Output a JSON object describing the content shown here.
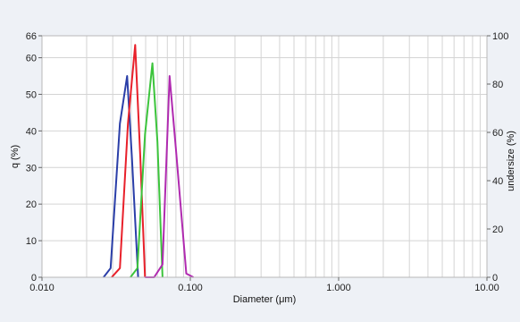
{
  "chart_data": {
    "type": "line",
    "xscale": "log",
    "xlim": [
      0.01,
      10
    ],
    "ylim": [
      0,
      66
    ],
    "y2lim": [
      0,
      100
    ],
    "xlabel": "Diameter (μm)",
    "ylabel": "q (%)",
    "y2label": "undersize (%)",
    "xticks": [
      "0.010",
      "0.100",
      "1.000",
      "10.00"
    ],
    "yticks": [
      "0",
      "10",
      "20",
      "30",
      "40",
      "50",
      "60",
      "66"
    ],
    "y2ticks": [
      "0",
      "20",
      "40",
      "60",
      "80",
      "100"
    ],
    "grid": true,
    "legend": "none",
    "series": [
      {
        "color": "#2a3ea8",
        "x": [
          0.026,
          0.029,
          0.0335,
          0.0375,
          0.0405,
          0.0445
        ],
        "y": [
          0,
          2.5,
          42,
          55,
          32,
          0
        ]
      },
      {
        "color": "#e8202a",
        "x": [
          0.0295,
          0.0335,
          0.038,
          0.0425,
          0.046,
          0.0495
        ],
        "y": [
          0,
          2.5,
          42,
          63.5,
          33,
          0
        ]
      },
      {
        "color": "#3cc43c",
        "x": [
          0.0395,
          0.044,
          0.0495,
          0.0555,
          0.06,
          0.065
        ],
        "y": [
          0,
          2.5,
          39,
          58.5,
          37,
          0
        ]
      },
      {
        "color": "#b02ab0",
        "x": [
          0.0495,
          0.057,
          0.065,
          0.0725,
          0.08,
          0.094,
          0.105
        ],
        "y": [
          0,
          0,
          3.5,
          55,
          35,
          1,
          0
        ]
      }
    ]
  }
}
